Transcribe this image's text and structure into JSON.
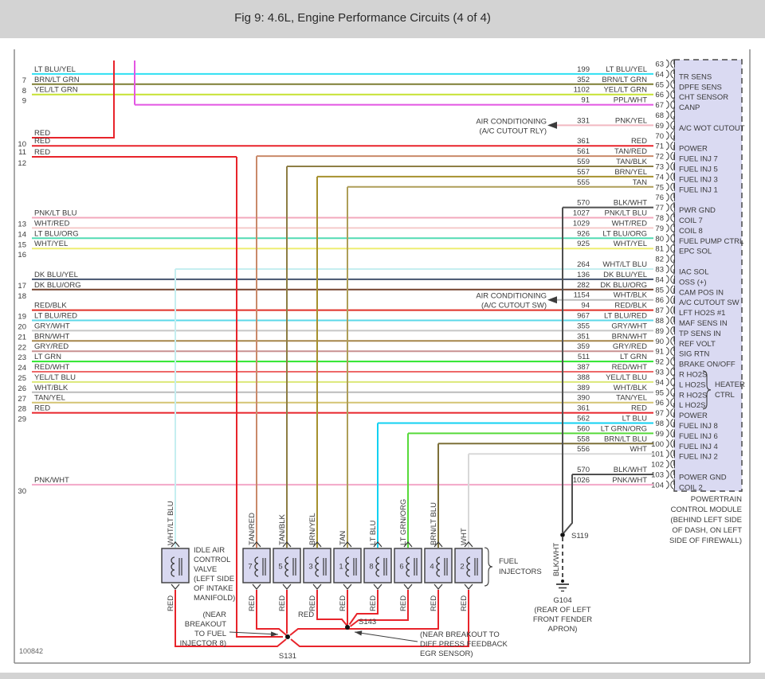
{
  "header": {
    "title": "Fig 9: 4.6L, Engine Performance Circuits (4 of 4)"
  },
  "figure_number": "100842",
  "palette": {
    "pcm_fill": "#dadaf2",
    "pcm_border": "#4a4a4a",
    "box_fill": "#d8d8f0",
    "box_border": "#3a3a3a",
    "line_black": "#3c3c3c",
    "text": "#3a3a3a",
    "title_bar": "#d3d3d3",
    "page_border": "#8c8c8c"
  },
  "wire_colors": {
    "LT BLU/YEL": "#2ee0f2",
    "BRN/LT GRN": "#7d7d33",
    "YEL/LT GRN": "#c6e232",
    "PPL/WHT": "#e356e3",
    "PNK/YEL": "#f2b9c2",
    "RED": "#e8242b",
    "TAN/RED": "#c98a6a",
    "TAN/BLK": "#8e7e45",
    "BRN/YEL": "#a6912e",
    "TAN": "#ae9e58",
    "BLK/WHT": "#4f4f4f",
    "PNK/LT BLU": "#f3a8bc",
    "WHT/RED": "#f5caca",
    "LT BLU/ORG": "#52dcb4",
    "WHT/YEL": "#eded72",
    "WHT/LT BLU": "#c5eef0",
    "DK BLU/YEL": "#44536e",
    "DK BLU/ORG": "#73422e",
    "WHT/BLK": "#bcbcbc",
    "RED/BLK": "#e03028",
    "LT BLU/RED": "#5cd8e8",
    "GRY/WHT": "#c6c6c6",
    "BRN/WHT": "#a5854a",
    "GRY/RED": "#c89090",
    "LT GRN": "#2ee62e",
    "RED/WHT": "#ee6868",
    "YEL/LT BLU": "#dce878",
    "TAN/YEL": "#d4c473",
    "LT BLU": "#12d1f2",
    "LT GRN/ORG": "#57da3a",
    "BRN/LT BLU": "#7d7038",
    "WHT": "#d8d8d8",
    "PNK/WHT": "#f3a8c8"
  },
  "pcm": {
    "caption_lines": [
      "POWERTRAIN",
      "CONTROL MODULE",
      "(BEHIND LEFT SIDE",
      "OF DASH, ON LEFT",
      "SIDE OF FIREWALL)"
    ],
    "heater_group": {
      "label_lines": [
        "HEATER",
        "CTRL"
      ],
      "from_pin": 93,
      "to_pin": 96
    },
    "pins": [
      {
        "n": 63
      },
      {
        "n": 64,
        "circuit": "199",
        "code": "LT BLU/YEL",
        "label": "TR SENS"
      },
      {
        "n": 65,
        "circuit": "352",
        "code": "BRN/LT GRN",
        "label": "DPFE SENS"
      },
      {
        "n": 66,
        "circuit": "1102",
        "code": "YEL/LT GRN",
        "label": "CHT SENSOR"
      },
      {
        "n": 67,
        "circuit": "91",
        "code": "PPL/WHT",
        "label": "CANP"
      },
      {
        "n": 68
      },
      {
        "n": 69,
        "circuit": "331",
        "code": "PNK/YEL",
        "label": "A/C WOT CUTOUT"
      },
      {
        "n": 70
      },
      {
        "n": 71,
        "circuit": "361",
        "code": "RED",
        "label": "POWER"
      },
      {
        "n": 72,
        "circuit": "561",
        "code": "TAN/RED",
        "label": "FUEL INJ 7"
      },
      {
        "n": 73,
        "circuit": "559",
        "code": "TAN/BLK",
        "label": "FUEL INJ 5"
      },
      {
        "n": 74,
        "circuit": "557",
        "code": "BRN/YEL",
        "label": "FUEL INJ 3"
      },
      {
        "n": 75,
        "circuit": "555",
        "code": "TAN",
        "label": "FUEL INJ 1"
      },
      {
        "n": 76
      },
      {
        "n": 77,
        "circuit": "570",
        "code": "BLK/WHT",
        "label": "PWR GND"
      },
      {
        "n": 78,
        "circuit": "1027",
        "code": "PNK/LT BLU",
        "label": "COIL 7"
      },
      {
        "n": 79,
        "circuit": "1029",
        "code": "WHT/RED",
        "label": "COIL 8"
      },
      {
        "n": 80,
        "circuit": "926",
        "code": "LT BLU/ORG",
        "label": "FUEL PUMP CTRL"
      },
      {
        "n": 81,
        "circuit": "925",
        "code": "WHT/YEL",
        "label": "EPC SOL"
      },
      {
        "n": 82
      },
      {
        "n": 83,
        "circuit": "264",
        "code": "WHT/LT BLU",
        "label": "IAC SOL"
      },
      {
        "n": 84,
        "circuit": "136",
        "code": "DK BLU/YEL",
        "label": "OSS (+)"
      },
      {
        "n": 85,
        "circuit": "282",
        "code": "DK BLU/ORG",
        "label": "CAM POS IN"
      },
      {
        "n": 86,
        "circuit": "1154",
        "code": "WHT/BLK",
        "label": "A/C CUTOUT SW"
      },
      {
        "n": 87,
        "circuit": "94",
        "code": "RED/BLK",
        "label": "LFT HO2S #1"
      },
      {
        "n": 88,
        "circuit": "967",
        "code": "LT BLU/RED",
        "label": "MAF SENS IN"
      },
      {
        "n": 89,
        "circuit": "355",
        "code": "GRY/WHT",
        "label": "TP SENS IN"
      },
      {
        "n": 90,
        "circuit": "351",
        "code": "BRN/WHT",
        "label": "REF VOLT"
      },
      {
        "n": 91,
        "circuit": "359",
        "code": "GRY/RED",
        "label": "SIG RTN"
      },
      {
        "n": 92,
        "circuit": "511",
        "code": "LT GRN",
        "label": "BRAKE ON/OFF"
      },
      {
        "n": 93,
        "circuit": "387",
        "code": "RED/WHT",
        "label": "R HO2S"
      },
      {
        "n": 94,
        "circuit": "388",
        "code": "YEL/LT BLU",
        "label": "L HO2S"
      },
      {
        "n": 95,
        "circuit": "389",
        "code": "WHT/BLK",
        "label": "R HO2S"
      },
      {
        "n": 96,
        "circuit": "390",
        "code": "TAN/YEL",
        "label": "L HO2S"
      },
      {
        "n": 97,
        "circuit": "361",
        "code": "RED",
        "label": "POWER"
      },
      {
        "n": 98,
        "circuit": "562",
        "code": "LT BLU",
        "label": "FUEL INJ 8"
      },
      {
        "n": 99,
        "circuit": "560",
        "code": "LT GRN/ORG",
        "label": "FUEL INJ 6"
      },
      {
        "n": 100,
        "circuit": "558",
        "code": "BRN/LT BLU",
        "label": "FUEL INJ 4"
      },
      {
        "n": 101,
        "circuit": "556",
        "code": "WHT",
        "label": "FUEL INJ 2"
      },
      {
        "n": 102
      },
      {
        "n": 103,
        "circuit": "570",
        "code": "BLK/WHT",
        "label": "POWER GND"
      },
      {
        "n": 104,
        "circuit": "1026",
        "code": "PNK/WHT",
        "label": "COIL 2"
      }
    ]
  },
  "left_rows": [
    {
      "n": 7,
      "code": "LT BLU/YEL",
      "pin": 64
    },
    {
      "n": 8,
      "code": "BRN/LT GRN",
      "pin": 65
    },
    {
      "n": 9,
      "code": "YEL/LT GRN",
      "pin": 66
    },
    {
      "n": 10,
      "code": "RED",
      "route": "top"
    },
    {
      "n": 11,
      "code": "RED",
      "pin": 71
    },
    {
      "n": 12,
      "code": "RED",
      "route": "down"
    },
    {
      "n": 13,
      "code": "PNK/LT BLU",
      "pin": 78
    },
    {
      "n": 14,
      "code": "WHT/RED",
      "pin": 79
    },
    {
      "n": 15,
      "code": "LT BLU/ORG",
      "pin": 80
    },
    {
      "n": 16,
      "code": "WHT/YEL",
      "pin": 81
    },
    {
      "n": 17,
      "code": "DK BLU/YEL",
      "pin": 84
    },
    {
      "n": 18,
      "code": "DK BLU/ORG",
      "pin": 85
    },
    {
      "n": 19,
      "code": "RED/BLK",
      "pin": 87
    },
    {
      "n": 20,
      "code": "LT BLU/RED",
      "pin": 88
    },
    {
      "n": 21,
      "code": "GRY/WHT",
      "pin": 89
    },
    {
      "n": 22,
      "code": "BRN/WHT",
      "pin": 90
    },
    {
      "n": 23,
      "code": "GRY/RED",
      "pin": 91
    },
    {
      "n": 24,
      "code": "LT GRN",
      "pin": 92
    },
    {
      "n": 25,
      "code": "RED/WHT",
      "pin": 93
    },
    {
      "n": 26,
      "code": "YEL/LT BLU",
      "pin": 94
    },
    {
      "n": 27,
      "code": "WHT/BLK",
      "pin": 95
    },
    {
      "n": 28,
      "code": "TAN/YEL",
      "pin": 96
    },
    {
      "n": 29,
      "code": "RED",
      "pin": 97
    },
    {
      "n": 30,
      "code": "PNK/WHT",
      "pin": 104
    }
  ],
  "components": {
    "iac": {
      "label_lines": [
        "IDLE AIR",
        "CONTROL",
        "VALVE",
        "(LEFT SIDE",
        "OF INTAKE",
        "MANIFOLD)"
      ],
      "top_wire": "WHT/LT BLU",
      "bottom_wire": "RED"
    },
    "injectors": {
      "numbers": [
        "7",
        "5",
        "3",
        "1",
        "8",
        "6",
        "4",
        "2"
      ],
      "top_wires": [
        "TAN/RED",
        "TAN/BLK",
        "BRN/YEL",
        "TAN",
        "LT BLU",
        "LT GRN/ORG",
        "BRN/LT BLU",
        "WHT"
      ],
      "top_pins": [
        72,
        73,
        74,
        75,
        98,
        99,
        100,
        101
      ],
      "bottom_wire": "RED",
      "group_label_lines": [
        "FUEL",
        "INJECTORS"
      ]
    }
  },
  "ground": {
    "splice": "S119",
    "wire": "BLK/WHT",
    "label_lines": [
      "G104",
      "(REAR OF LEFT",
      "FRONT FENDER",
      "APRON)"
    ]
  },
  "splices": {
    "s131": "S131",
    "s143": "S143",
    "bus_label": "RED"
  },
  "annotations": {
    "ac_rly_lines": [
      "AIR CONDITIONING",
      "(A/C CUTOUT RLY)"
    ],
    "ac_sw_lines": [
      "AIR CONDITIONING",
      "(A/C CUTOUT SW)"
    ],
    "breakout_inj8_lines": [
      "(NEAR",
      "BREAKOUT",
      "TO FUEL",
      "INJECTOR 8)"
    ],
    "breakout_egr_lines": [
      "(NEAR BREAKOUT TO",
      "DIFF PRESS FEEDBACK",
      "EGR SENSOR)"
    ]
  }
}
